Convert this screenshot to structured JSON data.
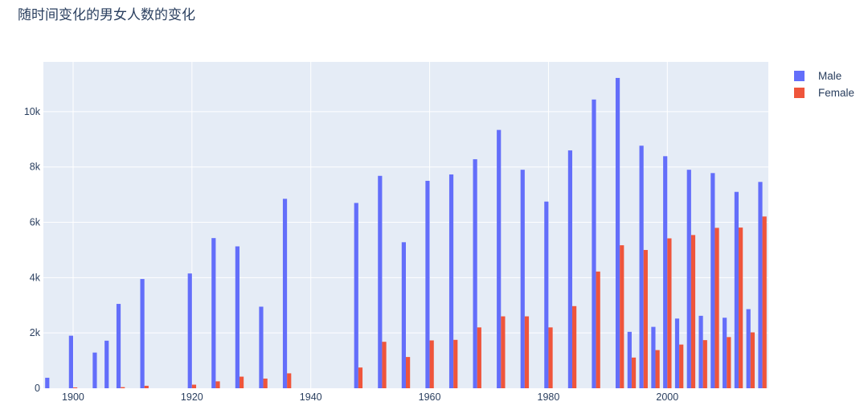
{
  "title": "随时间变化的男女人数的变化",
  "legend": [
    {
      "name": "Male",
      "color": "#636efa"
    },
    {
      "name": "Female",
      "color": "#ef553b"
    }
  ],
  "chart_data": {
    "type": "bar",
    "title": "随时间变化的男女人数的变化",
    "xlabel": "",
    "ylabel": "",
    "xlim": [
      1895,
      2017
    ],
    "ylim": [
      0,
      11800
    ],
    "x_ticks": [
      1900,
      1920,
      1940,
      1960,
      1980,
      2000
    ],
    "x_tick_labels": [
      "1900",
      "1920",
      "1940",
      "1960",
      "1980",
      "2000"
    ],
    "y_ticks": [
      0,
      2000,
      4000,
      6000,
      8000,
      10000
    ],
    "y_tick_labels": [
      "0",
      "2k",
      "4k",
      "6k",
      "8k",
      "10k"
    ],
    "grid": true,
    "legend_position": "top-right",
    "background_color": "#e5ecf6",
    "series": [
      {
        "name": "Male",
        "color": "#636efa",
        "x": [
          1896,
          1900,
          1904,
          1906,
          1908,
          1912,
          1920,
          1924,
          1928,
          1932,
          1936,
          1948,
          1952,
          1956,
          1960,
          1964,
          1968,
          1972,
          1976,
          1980,
          1984,
          1988,
          1992,
          1994,
          1996,
          1998,
          2000,
          2002,
          2004,
          2006,
          2008,
          2010,
          2012,
          2014,
          2016
        ],
        "values": [
          380,
          1900,
          1290,
          1720,
          3050,
          3950,
          4150,
          5430,
          5130,
          2950,
          6850,
          6700,
          7680,
          5280,
          7500,
          7730,
          8280,
          9340,
          7900,
          6750,
          8600,
          10440,
          11220,
          2040,
          8770,
          2220,
          8390,
          2520,
          7900,
          2620,
          7780,
          2550,
          7100,
          2860,
          7460
        ]
      },
      {
        "name": "Female",
        "color": "#ef553b",
        "x": [
          1900,
          1908,
          1912,
          1920,
          1924,
          1928,
          1932,
          1936,
          1948,
          1952,
          1956,
          1960,
          1964,
          1968,
          1972,
          1976,
          1980,
          1984,
          1988,
          1992,
          1994,
          1996,
          1998,
          2000,
          2002,
          2004,
          2006,
          2008,
          2010,
          2012,
          2014,
          2016
        ],
        "values": [
          30,
          40,
          90,
          130,
          250,
          420,
          350,
          540,
          750,
          1680,
          1130,
          1730,
          1750,
          2200,
          2600,
          2600,
          2200,
          2970,
          4220,
          5170,
          1110,
          5000,
          1380,
          5420,
          1580,
          5540,
          1740,
          5800,
          1850,
          5810,
          2020,
          6210
        ]
      }
    ]
  }
}
